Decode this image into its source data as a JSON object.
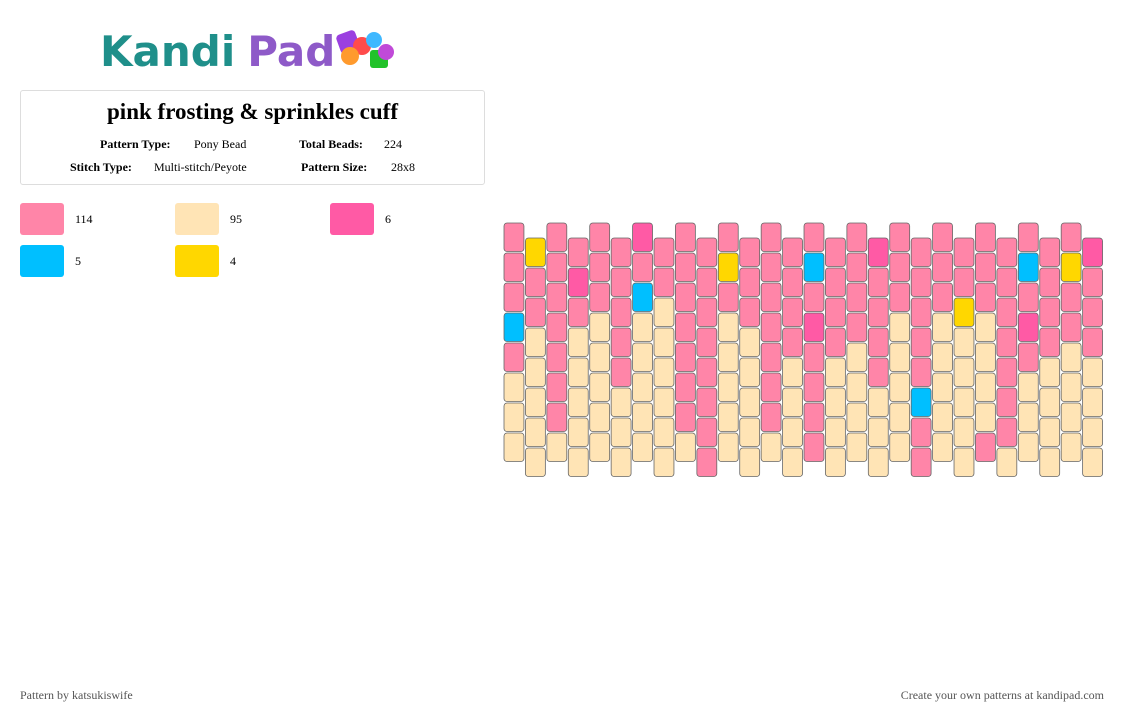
{
  "logo": [
    "Kandi",
    "Pad"
  ],
  "title": "pink frosting & sprinkles cuff",
  "info": [
    {
      "label": "Pattern Type:",
      "value": "Pony Bead"
    },
    {
      "label": "Total Beads:",
      "value": "224"
    },
    {
      "label": "Stitch Type:",
      "value": "Multi-stitch/Peyote"
    },
    {
      "label": "Pattern Size:",
      "value": "28x8"
    }
  ],
  "legend": [
    {
      "color": "#ff85a8",
      "count": 114
    },
    {
      "color": "#ffe4b5",
      "count": 95
    },
    {
      "color": "#ff5aa5",
      "count": 6
    },
    {
      "color": "#00bfff",
      "count": 5
    },
    {
      "color": "#ffd700",
      "count": 4
    }
  ],
  "pattern": {
    "columns": [
      [
        0,
        0,
        0,
        3,
        0,
        1,
        1,
        1
      ],
      [
        4,
        0,
        0,
        1,
        1,
        1,
        1,
        1
      ],
      [
        0,
        0,
        0,
        0,
        0,
        0,
        0,
        1
      ],
      [
        0,
        2,
        0,
        1,
        1,
        1,
        1,
        1
      ],
      [
        0,
        0,
        0,
        1,
        1,
        1,
        1,
        1
      ],
      [
        0,
        0,
        0,
        0,
        0,
        1,
        1,
        1
      ],
      [
        2,
        0,
        3,
        1,
        1,
        1,
        1,
        1
      ],
      [
        0,
        0,
        1,
        1,
        1,
        1,
        1,
        1
      ],
      [
        0,
        0,
        0,
        0,
        0,
        0,
        0,
        1
      ],
      [
        0,
        0,
        0,
        0,
        0,
        0,
        0,
        0
      ],
      [
        0,
        4,
        0,
        1,
        1,
        1,
        1,
        1
      ],
      [
        0,
        0,
        0,
        1,
        1,
        1,
        1,
        1
      ],
      [
        0,
        0,
        0,
        0,
        0,
        0,
        0,
        1
      ],
      [
        0,
        0,
        0,
        0,
        1,
        1,
        1,
        1
      ],
      [
        0,
        3,
        0,
        2,
        0,
        0,
        0,
        0
      ],
      [
        0,
        0,
        0,
        0,
        1,
        1,
        1,
        1
      ],
      [
        0,
        0,
        0,
        0,
        1,
        1,
        1,
        1
      ],
      [
        2,
        0,
        0,
        0,
        0,
        1,
        1,
        1
      ],
      [
        0,
        0,
        0,
        1,
        1,
        1,
        1,
        1
      ],
      [
        0,
        0,
        0,
        0,
        0,
        3,
        0,
        0
      ],
      [
        0,
        0,
        0,
        1,
        1,
        1,
        1,
        1
      ],
      [
        0,
        0,
        4,
        1,
        1,
        1,
        1,
        1
      ],
      [
        0,
        0,
        0,
        1,
        1,
        1,
        1,
        0
      ],
      [
        0,
        0,
        0,
        0,
        0,
        0,
        0,
        1
      ],
      [
        0,
        3,
        0,
        2,
        0,
        1,
        1,
        1
      ],
      [
        0,
        0,
        0,
        0,
        1,
        1,
        1,
        1
      ],
      [
        0,
        4,
        0,
        0,
        1,
        1,
        1,
        1
      ],
      [
        2,
        0,
        0,
        0,
        1,
        1,
        1,
        1
      ]
    ]
  },
  "footer": {
    "left": "Pattern by katsukiswife",
    "right": "Create your own patterns at kandipad.com"
  }
}
